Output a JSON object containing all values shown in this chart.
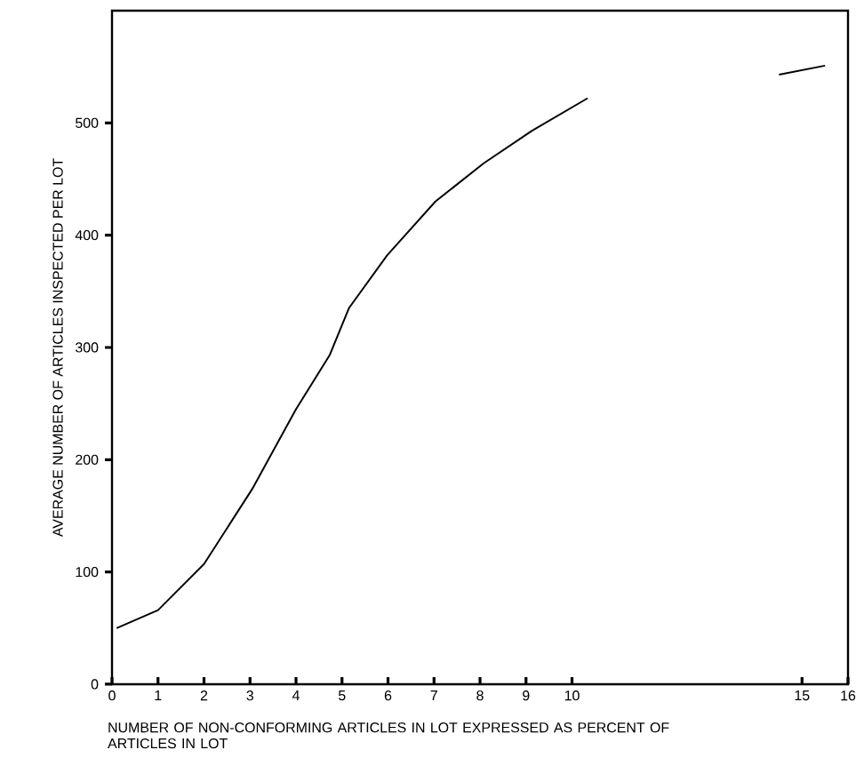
{
  "chart_data": {
    "type": "line",
    "xlabel": "NUMBER OF NON-CONFORMING ARTICLES IN LOT EXPRESSED AS PERCENT OF ARTICLES IN LOT",
    "ylabel": "AVERAGE NUMBER OF ARTICLES INSPECTED PER LOT",
    "series": [
      {
        "color": "#000000",
        "x": [
          0.1,
          1,
          2,
          3.05,
          4,
          4.73,
          5.15,
          5.98,
          7.03,
          8.08,
          9.13,
          10.34
        ],
        "values": [
          50,
          66,
          107,
          174,
          245,
          293,
          335,
          382,
          430,
          464,
          493,
          522
        ]
      },
      {
        "color": "#000000",
        "x": [
          14.5,
          15.5
        ],
        "values": [
          543,
          551
        ]
      }
    ],
    "xlim": [
      0,
      16
    ],
    "ylim": [
      0,
      600
    ],
    "xticks": [
      0,
      1,
      2,
      3,
      4,
      5,
      6,
      7,
      8,
      9,
      10,
      15,
      16
    ],
    "yticks": [
      0,
      100,
      200,
      300,
      400,
      500
    ],
    "grid": false,
    "marker": "none",
    "line_style": "solid"
  }
}
